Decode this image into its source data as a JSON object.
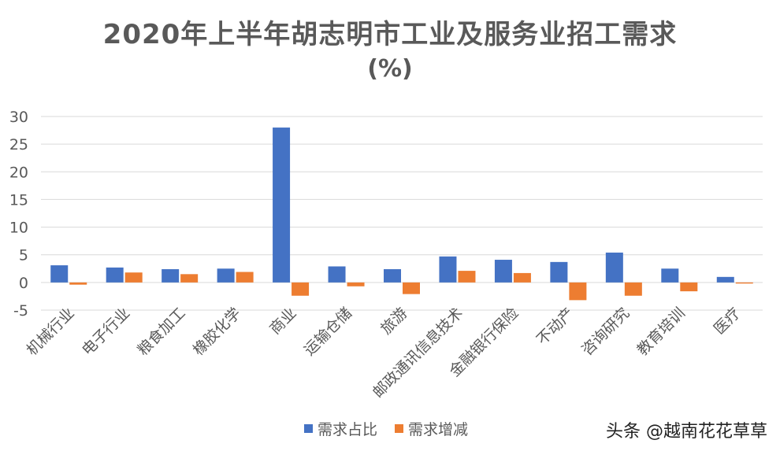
{
  "chart_data": {
    "type": "bar",
    "title": "2020年上半年胡志明市工业及服务业招工需求",
    "subtitle": "(%)",
    "categories": [
      "机械行业",
      "电子行业",
      "粮食加工",
      "橡胶化学",
      "商业",
      "运输仓储",
      "旅游",
      "邮政通讯信息技术",
      "金融银行保险",
      "不动产",
      "咨询研究",
      "教育培训",
      "医疗"
    ],
    "series": [
      {
        "name": "需求占比",
        "color": "#4472C4",
        "values": [
          3.1,
          2.7,
          2.4,
          2.5,
          28.0,
          2.9,
          2.4,
          4.7,
          4.1,
          3.7,
          5.4,
          2.5,
          1.0
        ]
      },
      {
        "name": "需求增减",
        "color": "#ED7D31",
        "values": [
          -0.4,
          1.8,
          1.5,
          1.9,
          -2.4,
          -0.7,
          -2.1,
          2.1,
          1.7,
          -3.2,
          -2.4,
          -1.6,
          -0.2
        ]
      }
    ],
    "ylim": [
      -5,
      30
    ],
    "yticks": [
      "30",
      "25",
      "20",
      "15",
      "10",
      "5",
      "0",
      "-5"
    ],
    "grid": true,
    "legend_position": "bottom"
  },
  "watermark": "头条 @越南花花草草"
}
